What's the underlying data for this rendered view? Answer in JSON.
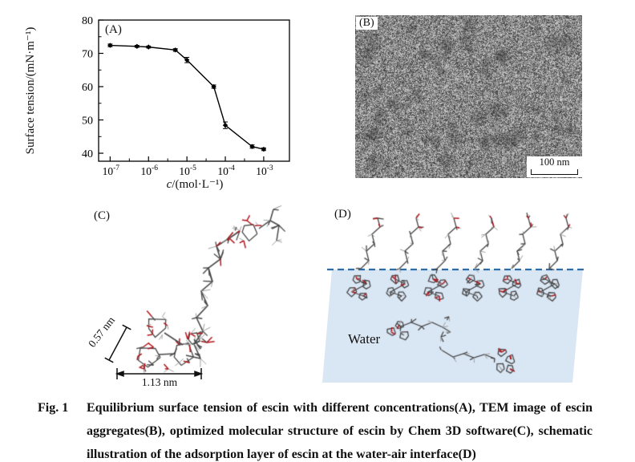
{
  "figure": {
    "caption": {
      "label": "Fig. 1",
      "lines": [
        "Equilibrium surface tension of escin with different concentrations(A), TEM image of escin",
        "aggregates(B), optimized molecular structure of escin by Chem 3D software(C), schematic",
        "illustration of the adsorption layer of escin at the water-air interface(D)"
      ]
    }
  },
  "panel_a": {
    "label": "(A)",
    "ylabel": "Surface tension/(mN·m⁻¹)",
    "xlabel_var": "c",
    "xlabel_rest": "/(mol·L⁻¹)"
  },
  "panel_b": {
    "label": "(B)",
    "scale_bar": "100 nm"
  },
  "panel_c": {
    "label": "(C)",
    "dim_short": "0.57 nm",
    "dim_long": "1.13 nm"
  },
  "panel_d": {
    "label": "(D)",
    "water_label": "Water",
    "water_fill": "#d9e6f4",
    "interface_color": "#2e6da8"
  },
  "colors": {
    "bond": "#474747",
    "hydrogen": "#9f9f9f",
    "oxygen": "#b0161c",
    "axis": "#000000",
    "tem_background": "#8f8f8f"
  },
  "chart_data": {
    "type": "line",
    "panel": "A",
    "x": [
      1e-07,
      5e-07,
      1e-06,
      5e-06,
      1e-05,
      5e-05,
      0.0001,
      0.0005,
      0.001
    ],
    "y": [
      72.4,
      72.1,
      71.9,
      71.0,
      68.0,
      60.0,
      48.4,
      42.0,
      41.2
    ],
    "y_err": [
      0.4,
      0.3,
      0.3,
      0.4,
      0.8,
      0.5,
      1.0,
      0.5,
      0.4
    ],
    "x_scale": "log",
    "x_ticks_exponents": [
      -7,
      -6,
      -5,
      -4,
      -3
    ],
    "y_ticks": [
      40,
      50,
      60,
      70,
      80
    ],
    "xlim_exponents": [
      -7.3,
      -2.33
    ],
    "ylim": [
      37.6,
      80
    ],
    "xlabel": "c/(mol·L⁻¹)",
    "ylabel": "Surface tension/(mN·m⁻¹)",
    "line_color": "#000000",
    "marker": "diamond",
    "grid": false
  }
}
